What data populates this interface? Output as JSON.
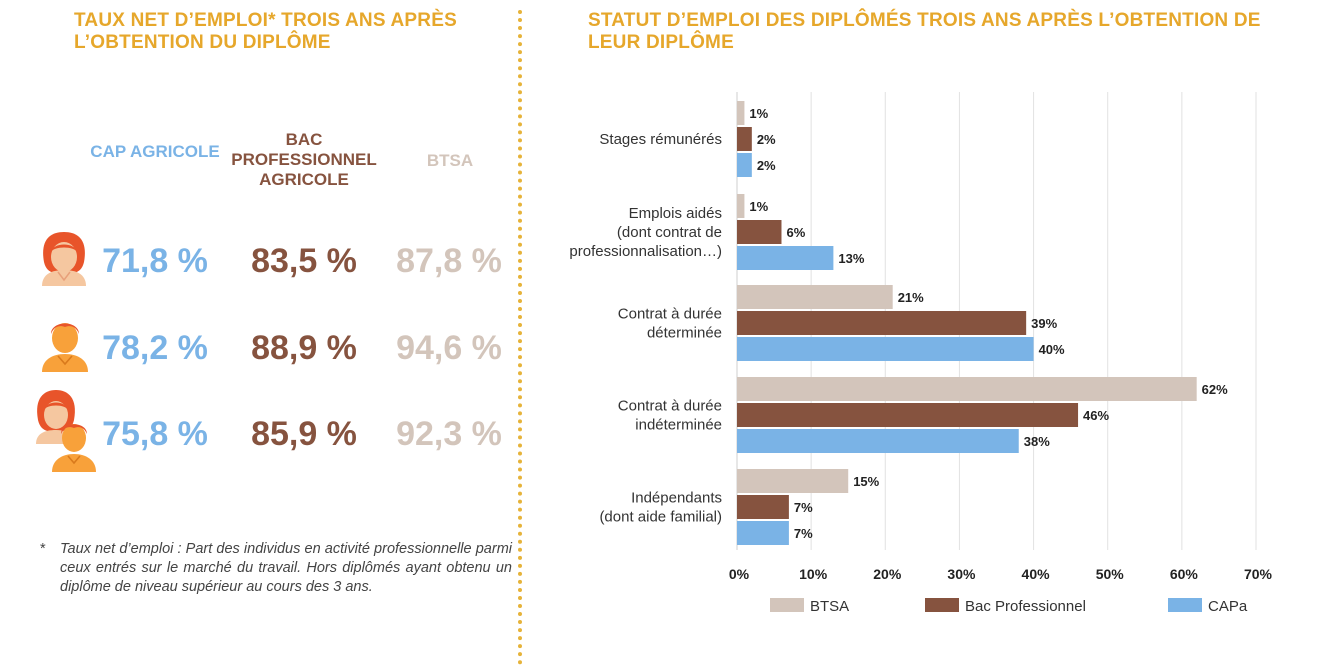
{
  "left": {
    "title": "TAUX NET D’EMPLOI* TROIS ANS APRÈS L’OBTENTION DU DIPLÔME",
    "columns": [
      "CAP AGRICOLE",
      "BAC PROFESSIONNEL AGRICOLE",
      "BTSA"
    ],
    "rows": [
      {
        "icon": "woman-icon",
        "values": [
          "71,8 %",
          "83,5 %",
          "87,8 %"
        ]
      },
      {
        "icon": "man-icon",
        "values": [
          "78,2 %",
          "88,9 %",
          "94,6 %"
        ]
      },
      {
        "icon": "woman-and-man-icon",
        "values": [
          "75,8 %",
          "85,9 %",
          "92,3 %"
        ]
      }
    ],
    "footnote_star": "*",
    "footnote": "Taux net d’emploi : Part des individus en activité professionnelle parmi ceux entrés sur le marché du travail. Hors diplômés ayant obtenu un diplôme de niveau supérieur au cours des 3 ans."
  },
  "colors": {
    "title": "#e6a72b",
    "btsa": "#d3c5bb",
    "bac": "#86533f",
    "capa": "#7ab3e6",
    "grid": "#e2e2e2"
  },
  "chart_data": {
    "type": "bar",
    "orientation": "horizontal",
    "title": "STATUT D’EMPLOI DES DIPLÔMÉS TROIS ANS APRÈS L’OBTENTION DE LEUR DIPLÔME",
    "categories": [
      "Stages rémunérés",
      "Emplois aidés (dont contrat de professionnalisation…)",
      "Contrat à durée déterminée",
      "Contrat à durée indéterminée",
      "Indépendants (dont aide familial)"
    ],
    "category_lines": [
      [
        "Stages rémunérés"
      ],
      [
        "Emplois aidés",
        "(dont contrat de",
        "professionnalisation…)"
      ],
      [
        "Contrat à durée",
        "déterminée"
      ],
      [
        "Contrat à durée",
        "indéterminée"
      ],
      [
        "Indépendants",
        "(dont aide familial)"
      ]
    ],
    "series": [
      {
        "name": "BTSA",
        "values": [
          1,
          1,
          21,
          62,
          15
        ],
        "color": "#d3c5bb"
      },
      {
        "name": "Bac Professionnel",
        "values": [
          2,
          6,
          39,
          46,
          7
        ],
        "color": "#86533f"
      },
      {
        "name": "CAPa",
        "values": [
          2,
          13,
          40,
          38,
          7
        ],
        "color": "#7ab3e6"
      }
    ],
    "value_labels": [
      [
        "1%",
        "1%",
        "21%",
        "62%",
        "15%"
      ],
      [
        "2%",
        "6%",
        "39%",
        "46%",
        "7%"
      ],
      [
        "2%",
        "13%",
        "40%",
        "38%",
        "7%"
      ]
    ],
    "xlim": [
      0,
      70
    ],
    "xticks": [
      "0%",
      "10%",
      "20%",
      "30%",
      "40%",
      "50%",
      "60%",
      "70%"
    ],
    "grid": true,
    "legend_position": "bottom"
  }
}
